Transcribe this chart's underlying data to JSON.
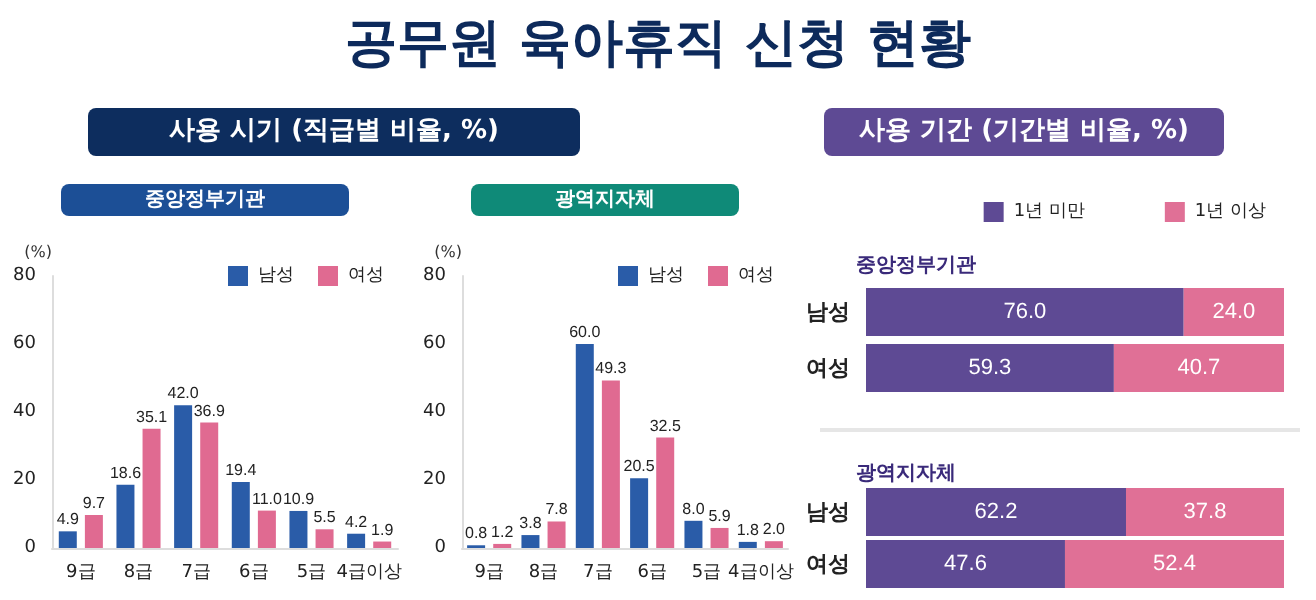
{
  "chart_data": [
    {
      "type": "bar",
      "title": "중앙정부기관",
      "ylabel": "(%)",
      "annotations": [
        "공무원 육아휴직 신청 현황",
        "사용 시기 (직급별 비율, %)"
      ],
      "categories": [
        "9급",
        "8급",
        "7급",
        "6급",
        "5급",
        "4급이상"
      ],
      "series": [
        {
          "name": "남성",
          "color": "#2a5ca8",
          "values": [
            4.9,
            18.6,
            42.0,
            19.4,
            10.9,
            4.2
          ],
          "value_labels": [
            "4.9",
            "18.6",
            "42.0",
            "19.4",
            "10.9",
            "4.2"
          ]
        },
        {
          "name": "여성",
          "color": "#e06a91",
          "values": [
            9.7,
            35.1,
            36.9,
            11.0,
            5.5,
            1.9
          ],
          "value_labels": [
            "9.7",
            "35.1",
            "36.9",
            "11.0",
            "5.5",
            "1.9"
          ]
        }
      ],
      "ylim": [
        0,
        80
      ],
      "yticks": [
        0,
        20,
        40,
        60,
        80
      ],
      "legend": "top right",
      "grid": false
    },
    {
      "type": "bar",
      "title": "광역지자체",
      "ylabel": "(%)",
      "categories": [
        "9급",
        "8급",
        "7급",
        "6급",
        "5급",
        "4급이상"
      ],
      "series": [
        {
          "name": "남성",
          "color": "#2a5ca8",
          "values": [
            0.8,
            3.8,
            60.0,
            20.5,
            8.0,
            1.8
          ],
          "value_labels": [
            "0.8",
            "3.8",
            "60.0",
            "20.5",
            "8.0",
            "1.8"
          ]
        },
        {
          "name": "여성",
          "color": "#e06a91",
          "values": [
            1.2,
            7.8,
            49.3,
            32.5,
            5.9,
            2.0
          ],
          "value_labels": [
            "1.2",
            "7.8",
            "49.3",
            "32.5",
            "5.9",
            "2.0"
          ]
        }
      ],
      "ylim": [
        0,
        80
      ],
      "yticks": [
        0,
        20,
        40,
        60,
        80
      ],
      "legend": "top right",
      "grid": false
    },
    {
      "type": "bar",
      "title": "중앙정부기관",
      "annotations": [
        "사용 기간 (기간별 비율, %)"
      ],
      "orientation": "horizontal",
      "stacked": true,
      "categories": [
        "남성",
        "여성"
      ],
      "series": [
        {
          "name": "1년 미만",
          "color": "#5e4a94",
          "values": [
            76.0,
            59.3
          ],
          "value_labels": [
            "76.0",
            "59.3"
          ]
        },
        {
          "name": "1년 이상",
          "color": "#e07096",
          "values": [
            24.0,
            40.7
          ],
          "value_labels": [
            "24.0",
            "40.7"
          ]
        }
      ],
      "xlim": [
        0,
        100
      ],
      "tick_labels": "y",
      "legend": "top right",
      "grid": false
    },
    {
      "type": "bar",
      "title": "광역지자체",
      "orientation": "horizontal",
      "stacked": true,
      "categories": [
        "남성",
        "여성"
      ],
      "series": [
        {
          "color": "#5e4a94",
          "values": [
            62.2,
            47.6
          ],
          "value_labels": [
            "62.2",
            "47.6"
          ]
        },
        {
          "color": "#e07096",
          "values": [
            37.8,
            52.4
          ],
          "value_labels": [
            "37.8",
            "52.4"
          ]
        }
      ],
      "xlim": [
        0,
        100
      ],
      "tick_labels": "y",
      "grid": false
    }
  ]
}
